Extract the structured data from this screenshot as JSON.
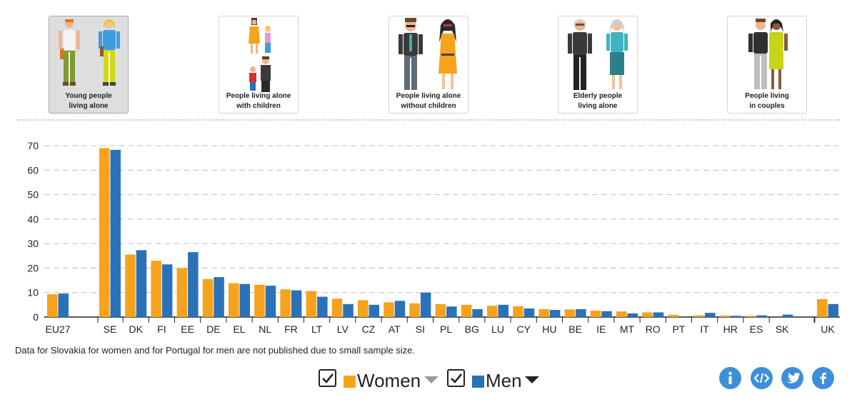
{
  "cards": [
    {
      "id": "young",
      "line1": "Young people",
      "line2": "living alone",
      "selected": true
    },
    {
      "id": "children",
      "line1": "People living alone",
      "line2": "with children",
      "selected": false
    },
    {
      "id": "nochildren",
      "line1": "People living alone",
      "line2": "without children",
      "selected": false
    },
    {
      "id": "elderly",
      "line1": "Elderly people",
      "line2": "living alone",
      "selected": false
    },
    {
      "id": "couples",
      "line1": "People living",
      "line2": "in couples",
      "selected": false
    }
  ],
  "note": "Data for Slovakia for women and for Portugal for men are not published due to small sample size.",
  "legend": {
    "women": "Women",
    "men": "Men"
  },
  "share_icons": [
    "info-icon",
    "embed-code-icon",
    "twitter-icon",
    "facebook-icon"
  ],
  "colors": {
    "women": "#f7a21b",
    "men": "#2a71b8",
    "share": "#3d8fd9"
  },
  "chart_data": {
    "type": "bar",
    "categories": [
      "EU27",
      "SE",
      "DK",
      "FI",
      "EE",
      "DE",
      "EL",
      "NL",
      "FR",
      "LT",
      "LV",
      "CZ",
      "AT",
      "SI",
      "PL",
      "BG",
      "LU",
      "CY",
      "HU",
      "BE",
      "IE",
      "MT",
      "RO",
      "PT",
      "IT",
      "HR",
      "ES",
      "SK",
      "UK"
    ],
    "series": [
      {
        "name": "Women",
        "values": [
          9.3,
          69.0,
          25.5,
          23.0,
          20.0,
          15.5,
          13.8,
          13.2,
          11.3,
          10.6,
          7.5,
          6.9,
          6.0,
          5.6,
          5.3,
          5.0,
          4.6,
          4.4,
          3.2,
          3.1,
          2.6,
          2.3,
          1.9,
          0.9,
          0.7,
          0.6,
          0.5,
          null,
          7.3
        ]
      },
      {
        "name": "Men",
        "values": [
          9.6,
          68.3,
          27.3,
          21.5,
          26.5,
          16.3,
          13.5,
          12.8,
          10.9,
          8.3,
          5.3,
          5.0,
          6.6,
          10.0,
          4.3,
          3.2,
          5.0,
          3.5,
          2.9,
          3.2,
          2.4,
          1.5,
          1.9,
          null,
          1.7,
          0.5,
          0.7,
          1.0,
          5.3
        ]
      }
    ],
    "yticks": [
      0,
      10,
      20,
      30,
      40,
      50,
      60,
      70
    ],
    "ylim": [
      0,
      70
    ],
    "grid": true,
    "legend_position": "bottom-center"
  }
}
